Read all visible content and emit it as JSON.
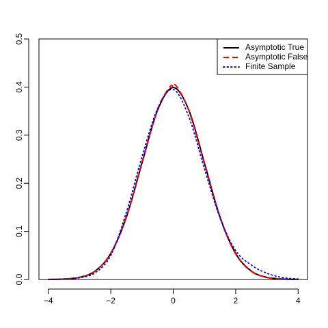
{
  "chart_data": {
    "type": "line",
    "title": "",
    "xlabel": "",
    "ylabel": "",
    "xlim": [
      -4.3,
      4.3
    ],
    "ylim": [
      0,
      0.5
    ],
    "x_ticks": [
      -4,
      -2,
      0,
      2,
      4
    ],
    "x_tick_labels": [
      "−4",
      "−2",
      "0",
      "2",
      "4"
    ],
    "y_ticks": [
      0.0,
      0.1,
      0.2,
      0.3,
      0.4,
      0.5
    ],
    "y_tick_labels": [
      "0.0",
      "0.1",
      "0.2",
      "0.3",
      "0.4",
      "0.5"
    ],
    "grid": false,
    "legend_position": "top-right",
    "series": [
      {
        "name": "Asymptotic True",
        "color": "#000000",
        "style": "solid",
        "x": [
          -4.0,
          -3.5,
          -3.0,
          -2.5,
          -2.0,
          -1.5,
          -1.0,
          -0.5,
          0.0,
          0.5,
          1.0,
          1.5,
          2.0,
          2.5,
          3.0,
          3.5,
          4.0
        ],
        "y": [
          0.0001,
          0.0009,
          0.0044,
          0.0175,
          0.054,
          0.1295,
          0.242,
          0.352,
          0.399,
          0.352,
          0.242,
          0.1295,
          0.054,
          0.0175,
          0.0044,
          0.0009,
          0.0001
        ]
      },
      {
        "name": "Asymptotic False",
        "color": "#ff0000",
        "style": "dashed",
        "x": [
          -4.0,
          -3.5,
          -3.0,
          -2.5,
          -2.0,
          -1.5,
          -1.0,
          -0.5,
          -0.1,
          0.0,
          0.1,
          0.5,
          1.0,
          1.5,
          2.0,
          2.5,
          3.0,
          3.5,
          4.0
        ],
        "y": [
          0.0001,
          0.0009,
          0.0045,
          0.0178,
          0.055,
          0.131,
          0.244,
          0.354,
          0.401,
          0.399,
          0.402,
          0.351,
          0.24,
          0.128,
          0.053,
          0.017,
          0.0043,
          0.0009,
          0.0001
        ]
      },
      {
        "name": "Finite Sample",
        "color": "#0000ff",
        "style": "dotted",
        "x": [
          -4.0,
          -3.5,
          -3.0,
          -2.5,
          -2.0,
          -1.5,
          -1.0,
          -0.5,
          0.0,
          0.5,
          1.0,
          1.5,
          2.0,
          2.5,
          3.0,
          3.5,
          4.0
        ],
        "y": [
          0.0002,
          0.0008,
          0.0036,
          0.014,
          0.05,
          0.14,
          0.255,
          0.355,
          0.395,
          0.338,
          0.23,
          0.128,
          0.06,
          0.03,
          0.013,
          0.004,
          0.001
        ]
      }
    ]
  }
}
